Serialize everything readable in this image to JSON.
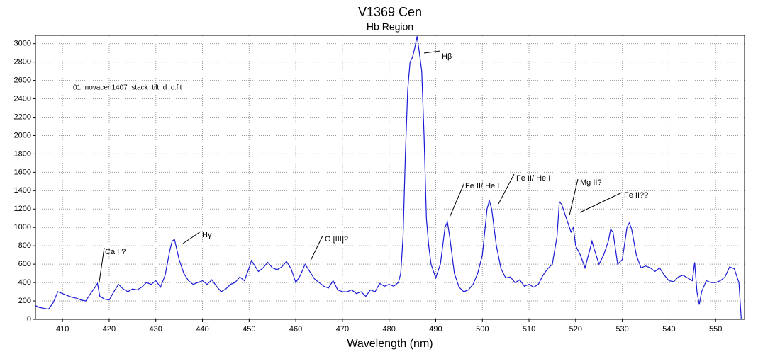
{
  "chart_data": {
    "type": "line",
    "title": "V1369 Cen",
    "subtitle": "Hb Region",
    "x_label": "Wavelength (nm)",
    "x": [
      404.2,
      405,
      406,
      407,
      408,
      409,
      410,
      411,
      412,
      413,
      414,
      415,
      416,
      417,
      417.5,
      418,
      419,
      420,
      421,
      422,
      423,
      424,
      425,
      426,
      427,
      428,
      429,
      430,
      431,
      432,
      433,
      433.5,
      434,
      435,
      436,
      437,
      438,
      439,
      440,
      441,
      442,
      443,
      444,
      445,
      446,
      447,
      448,
      449,
      450,
      450.5,
      451,
      452,
      453,
      454,
      455,
      456,
      457,
      458,
      459,
      460,
      461,
      462,
      463,
      464,
      465,
      466,
      467,
      468,
      469,
      470,
      471,
      472,
      473,
      474,
      475,
      476,
      477,
      478,
      479,
      480,
      481,
      482,
      482.5,
      483,
      483.5,
      484,
      484.5,
      485,
      485.5,
      486,
      486.5,
      487,
      487.5,
      488,
      488.5,
      489,
      490,
      491,
      492,
      492.5,
      493,
      494,
      495,
      496,
      497,
      498,
      499,
      500,
      501,
      501.5,
      502,
      503,
      504,
      505,
      506,
      507,
      508,
      509,
      510,
      511,
      512,
      513,
      514,
      515,
      516,
      516.5,
      517,
      518,
      519,
      519.5,
      520,
      521,
      522,
      523,
      523.5,
      524,
      525,
      526,
      527,
      527.5,
      528,
      529,
      530,
      531,
      531.5,
      532,
      533,
      534,
      535,
      536,
      537,
      538,
      539,
      540,
      541,
      542,
      543,
      544,
      545,
      545.5,
      546,
      546.5,
      547,
      548,
      549,
      550,
      551,
      552,
      553,
      554,
      555,
      555.5
    ],
    "series": [
      {
        "name": "01: novacen1407_stack_tilt_d_c.fit",
        "color": "#1a1ad6",
        "values": [
          150,
          130,
          120,
          110,
          180,
          300,
          280,
          260,
          240,
          230,
          210,
          200,
          280,
          350,
          390,
          250,
          220,
          210,
          300,
          380,
          330,
          300,
          330,
          320,
          350,
          400,
          380,
          420,
          350,
          480,
          750,
          850,
          870,
          650,
          500,
          420,
          380,
          400,
          420,
          380,
          430,
          360,
          300,
          330,
          380,
          400,
          460,
          420,
          560,
          640,
          600,
          520,
          560,
          620,
          560,
          540,
          570,
          630,
          550,
          400,
          480,
          600,
          520,
          440,
          400,
          360,
          340,
          420,
          320,
          300,
          300,
          320,
          280,
          300,
          250,
          320,
          300,
          390,
          360,
          380,
          360,
          400,
          500,
          900,
          1800,
          2500,
          2800,
          2850,
          2950,
          3080,
          2900,
          2700,
          2000,
          1100,
          800,
          600,
          450,
          600,
          1000,
          1060,
          900,
          500,
          350,
          300,
          320,
          380,
          500,
          700,
          1200,
          1290,
          1200,
          800,
          550,
          450,
          460,
          400,
          430,
          360,
          380,
          350,
          380,
          480,
          550,
          600,
          900,
          1280,
          1250,
          1100,
          950,
          1000,
          800,
          700,
          560,
          750,
          850,
          760,
          600,
          700,
          850,
          980,
          950,
          600,
          650,
          1000,
          1050,
          980,
          700,
          560,
          580,
          560,
          520,
          560,
          480,
          420,
          410,
          460,
          480,
          450,
          420,
          620,
          300,
          160,
          300,
          420,
          400,
          400,
          420,
          460,
          570,
          550,
          400,
          0
        ]
      }
    ],
    "annotations": [
      "Ca I ?",
      "Hγ",
      "O [III]?",
      "Hβ",
      "Fe II/ He I",
      "Fe II/ He I",
      "Mg II?",
      "Fe II??"
    ],
    "xlim": [
      404.2,
      556.2
    ],
    "ylim": [
      0,
      3090
    ],
    "xticks": [
      410,
      420,
      430,
      440,
      450,
      460,
      470,
      480,
      490,
      500,
      510,
      520,
      530,
      540,
      550
    ],
    "yticks": [
      0,
      200,
      400,
      600,
      800,
      1000,
      1200,
      1400,
      1600,
      1800,
      2000,
      2200,
      2400,
      2600,
      2800,
      3000
    ],
    "grid": true
  }
}
